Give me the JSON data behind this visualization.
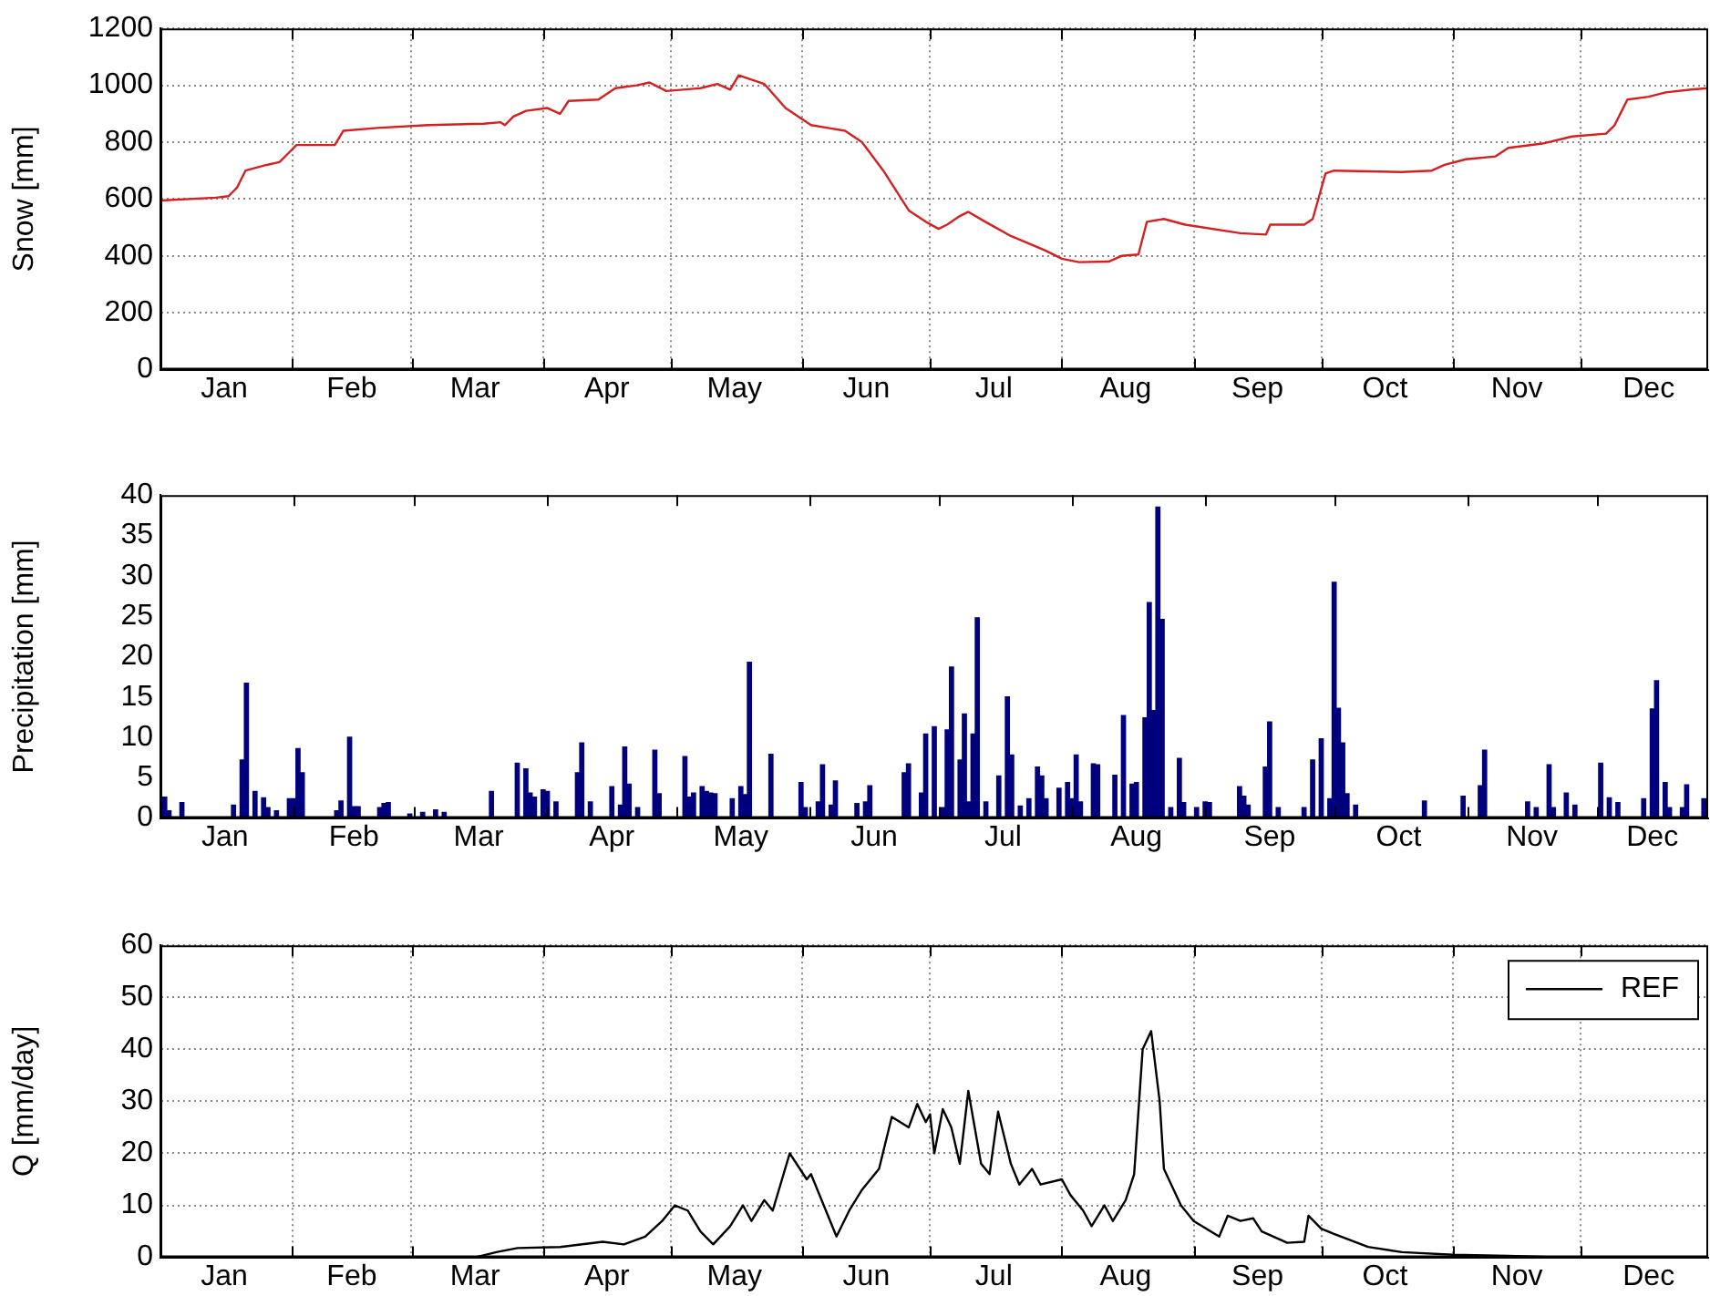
{
  "chart_data": [
    {
      "type": "line",
      "ylabel": "Snow [mm]",
      "xlim": [
        "--01-01",
        "--12-31"
      ],
      "ylim": [
        0,
        1200
      ],
      "yticks": [
        0,
        200,
        400,
        600,
        800,
        1000,
        1200
      ],
      "grid": true,
      "xticks": [
        {
          "value": "--01-16",
          "label": "Jan"
        },
        {
          "value": "--02-01",
          "label": null
        },
        {
          "value": "--02-15",
          "label": "Feb"
        },
        {
          "value": "--03-01",
          "label": null
        },
        {
          "value": "--03-16",
          "label": "Mar"
        },
        {
          "value": "--04-01",
          "label": null
        },
        {
          "value": "--04-16",
          "label": "Apr"
        },
        {
          "value": "--05-01",
          "label": null
        },
        {
          "value": "--05-16",
          "label": "May"
        },
        {
          "value": "--06-01",
          "label": null
        },
        {
          "value": "--06-16",
          "label": "Jun"
        },
        {
          "value": "--07-01",
          "label": null
        },
        {
          "value": "--07-16",
          "label": "Jul"
        },
        {
          "value": "--08-01",
          "label": null
        },
        {
          "value": "--08-16",
          "label": "Aug"
        },
        {
          "value": "--09-01",
          "label": null
        },
        {
          "value": "--09-16",
          "label": "Sep"
        },
        {
          "value": "--10-01",
          "label": null
        },
        {
          "value": "--10-16",
          "label": "Oct"
        },
        {
          "value": "--11-01",
          "label": null
        },
        {
          "value": "--11-16",
          "label": "Nov"
        },
        {
          "value": "--12-01",
          "label": null
        },
        {
          "value": "--12-17",
          "label": "Dec"
        }
      ],
      "x": [
        "--01-01",
        "--01-14",
        "--01-17",
        "--01-19",
        "--01-21",
        "--01-26",
        "--01-29",
        "--01-31",
        "--02-02",
        "--02-11",
        "--02-13",
        "--02-21",
        "--03-05",
        "--03-18",
        "--03-22",
        "--03-23",
        "--03-25",
        "--03-28",
        "--04-02",
        "--04-05",
        "--04-07",
        "--04-14",
        "--04-18",
        "--04-23",
        "--04-26",
        "--04-30",
        "--05-08",
        "--05-12",
        "--05-15",
        "--05-17",
        "--05-20",
        "--05-23",
        "--05-28",
        "--06-03",
        "--06-07",
        "--06-11",
        "--06-15",
        "--06-20",
        "--06-26",
        "--06-30",
        "--07-03",
        "--07-05",
        "--07-08",
        "--07-10",
        "--07-14",
        "--07-20",
        "--07-28",
        "--08-01",
        "--08-05",
        "--08-12",
        "--08-15",
        "--08-19",
        "--08-21",
        "--08-25",
        "--08-30",
        "--09-12",
        "--09-18",
        "--09-19",
        "--09-27",
        "--09-29",
        "--10-02",
        "--10-04",
        "--10-20",
        "--10-27",
        "--10-30",
        "--11-04",
        "--11-11",
        "--11-14",
        "--11-22",
        "--11-29",
        "--12-07",
        "--12-09",
        "--12-12",
        "--12-17",
        "--12-21",
        "--12-27",
        "--12-31"
      ],
      "series": [
        {
          "color": "#d42020",
          "values": [
            595,
            605,
            610,
            640,
            700,
            720,
            730,
            760,
            790,
            790,
            840,
            850,
            860,
            865,
            870,
            860,
            890,
            910,
            920,
            900,
            945,
            950,
            990,
            1000,
            1010,
            980,
            990,
            1005,
            985,
            1035,
            1020,
            1005,
            920,
            860,
            850,
            840,
            800,
            700,
            560,
            520,
            495,
            510,
            540,
            555,
            520,
            470,
            420,
            390,
            378,
            380,
            400,
            405,
            520,
            530,
            510,
            480,
            475,
            510,
            510,
            530,
            690,
            700,
            695,
            700,
            720,
            740,
            750,
            780,
            795,
            820,
            830,
            860,
            950,
            960,
            975,
            985,
            990
          ]
        }
      ]
    },
    {
      "type": "bar",
      "ylabel": "Precipitation [mm]",
      "xlim": [
        "--01-01",
        "--12-27"
      ],
      "ylim": [
        0,
        40
      ],
      "yticks": [
        0,
        5,
        10,
        15,
        20,
        25,
        30,
        35,
        40
      ],
      "xticks": [
        {
          "value": "--01-16",
          "label": "Jan"
        },
        {
          "value": "--02-01",
          "label": null
        },
        {
          "value": "--02-15",
          "label": "Feb"
        },
        {
          "value": "--03-01",
          "label": null
        },
        {
          "value": "--03-16",
          "label": "Mar"
        },
        {
          "value": "--04-01",
          "label": null
        },
        {
          "value": "--04-16",
          "label": "Apr"
        },
        {
          "value": "--05-01",
          "label": null
        },
        {
          "value": "--05-16",
          "label": "May"
        },
        {
          "value": "--06-01",
          "label": null
        },
        {
          "value": "--06-16",
          "label": "Jun"
        },
        {
          "value": "--07-01",
          "label": null
        },
        {
          "value": "--07-16",
          "label": "Jul"
        },
        {
          "value": "--08-01",
          "label": null
        },
        {
          "value": "--08-16",
          "label": "Aug"
        },
        {
          "value": "--09-01",
          "label": null
        },
        {
          "value": "--09-16",
          "label": "Sep"
        },
        {
          "value": "--10-01",
          "label": null
        },
        {
          "value": "--10-16",
          "label": "Oct"
        },
        {
          "value": "--11-01",
          "label": null
        },
        {
          "value": "--11-16",
          "label": "Nov"
        },
        {
          "value": "--12-01",
          "label": null
        },
        {
          "value": "--12-14",
          "label": "Dec"
        }
      ],
      "x": [
        "--01-02",
        "--01-03",
        "--01-06",
        "--01-18",
        "--01-20",
        "--01-21",
        "--01-23",
        "--01-25",
        "--01-26",
        "--01-28",
        "--01-31",
        "--02-01",
        "--02-02",
        "--02-03",
        "--02-11",
        "--02-12",
        "--02-14",
        "--02-15",
        "--02-16",
        "--02-21",
        "--02-22",
        "--02-23",
        "--02-28",
        "--03-03",
        "--03-06",
        "--03-08",
        "--03-19",
        "--03-25",
        "--03-27",
        "--03-28",
        "--03-29",
        "--03-31",
        "--04-01",
        "--04-03",
        "--04-08",
        "--04-09",
        "--04-11",
        "--04-16",
        "--04-18",
        "--04-19",
        "--04-20",
        "--04-22",
        "--04-26",
        "--04-27",
        "--05-03",
        "--05-04",
        "--05-05",
        "--05-07",
        "--05-08",
        "--05-09",
        "--05-10",
        "--05-14",
        "--05-16",
        "--05-17",
        "--05-18",
        "--05-23",
        "--05-30",
        "--05-31",
        "--06-03",
        "--06-04",
        "--06-06",
        "--06-07",
        "--06-12",
        "--06-14",
        "--06-15",
        "--06-23",
        "--06-24",
        "--06-27",
        "--06-28",
        "--06-30",
        "--07-02",
        "--07-03",
        "--07-04",
        "--07-06",
        "--07-07",
        "--07-08",
        "--07-09",
        "--07-10",
        "--07-12",
        "--07-15",
        "--07-17",
        "--07-18",
        "--07-20",
        "--07-22",
        "--07-24",
        "--07-25",
        "--07-26",
        "--07-29",
        "--07-31",
        "--08-01",
        "--08-02",
        "--08-03",
        "--08-06",
        "--08-07",
        "--08-11",
        "--08-13",
        "--08-15",
        "--08-16",
        "--08-18",
        "--08-19",
        "--08-20",
        "--08-21",
        "--08-22",
        "--08-24",
        "--08-26",
        "--08-27",
        "--08-30",
        "--09-01",
        "--09-02",
        "--09-09",
        "--09-10",
        "--09-11",
        "--09-15",
        "--09-16",
        "--09-18",
        "--09-24",
        "--09-26",
        "--09-28",
        "--09-30",
        "--10-01",
        "--10-02",
        "--10-03",
        "--10-04",
        "--10-06",
        "--10-22",
        "--10-31",
        "--11-04",
        "--11-05",
        "--11-15",
        "--11-17",
        "--11-20",
        "--11-21",
        "--11-24",
        "--11-26",
        "--12-02",
        "--12-04",
        "--12-06",
        "--12-12",
        "--12-14",
        "--12-15",
        "--12-17",
        "--12-18",
        "--12-21",
        "--12-22",
        "--12-26"
      ],
      "series": [
        {
          "color": "#00007f",
          "values": [
            2.6,
            0.9,
            1.9,
            1.6,
            7.2,
            16.7,
            3.3,
            2.5,
            1.3,
            0.9,
            2.4,
            2.4,
            8.6,
            5.6,
            0.9,
            2.1,
            10,
            1.4,
            1.4,
            1.3,
            1.8,
            1.9,
            0.5,
            0.7,
            1.0,
            0.7,
            3.3,
            6.8,
            6.1,
            3.1,
            2.6,
            3.5,
            3.3,
            2,
            5.6,
            9.3,
            2,
            3.9,
            1.6,
            8.8,
            4.2,
            1.3,
            8.4,
            3,
            7.6,
            2.6,
            3.1,
            3.9,
            3.3,
            3.1,
            3,
            2.4,
            3.9,
            2.9,
            19.3,
            7.9,
            4.4,
            1.3,
            2,
            6.6,
            1.6,
            4.6,
            1.8,
            2,
            4,
            5.6,
            6.7,
            3.1,
            10.4,
            11.3,
            1.3,
            10.9,
            18.7,
            7.2,
            12.9,
            2,
            10.4,
            24.8,
            2,
            5.2,
            15,
            7.8,
            1.5,
            2.4,
            6.3,
            5.2,
            2.4,
            3.7,
            4.4,
            2.4,
            7.8,
            2,
            6.7,
            6.6,
            5.3,
            12.7,
            4.2,
            4.4,
            12.4,
            26.7,
            13.3,
            38.5,
            24.6,
            1.3,
            7.4,
            1.9,
            1.3,
            2,
            1.9,
            3.9,
            2.7,
            1.6,
            6.3,
            11.9,
            1.3,
            1.3,
            7.2,
            9.8,
            2.4,
            29.2,
            13.6,
            9.3,
            3,
            1.6,
            2.1,
            2.7,
            4,
            8.4,
            2,
            1.3,
            6.6,
            1.3,
            3.1,
            1.6,
            6.8,
            2.5,
            1.9,
            2.4,
            13.5,
            17,
            4.4,
            1.3,
            1.3,
            4.1,
            2.4
          ]
        }
      ]
    },
    {
      "type": "line",
      "ylabel": "Q [mm/day]",
      "xlim": [
        "--01-01",
        "--12-31"
      ],
      "ylim": [
        0,
        60
      ],
      "yticks": [
        0,
        10,
        20,
        30,
        40,
        50,
        60
      ],
      "grid": true,
      "legend": "top right",
      "xticks": [
        {
          "value": "--01-16",
          "label": "Jan"
        },
        {
          "value": "--02-01",
          "label": null
        },
        {
          "value": "--02-15",
          "label": "Feb"
        },
        {
          "value": "--03-01",
          "label": null
        },
        {
          "value": "--03-16",
          "label": "Mar"
        },
        {
          "value": "--04-01",
          "label": null
        },
        {
          "value": "--04-16",
          "label": "Apr"
        },
        {
          "value": "--05-01",
          "label": null
        },
        {
          "value": "--05-16",
          "label": "May"
        },
        {
          "value": "--06-01",
          "label": null
        },
        {
          "value": "--06-16",
          "label": "Jun"
        },
        {
          "value": "--07-01",
          "label": null
        },
        {
          "value": "--07-16",
          "label": "Jul"
        },
        {
          "value": "--08-01",
          "label": null
        },
        {
          "value": "--08-16",
          "label": "Aug"
        },
        {
          "value": "--09-01",
          "label": null
        },
        {
          "value": "--09-16",
          "label": "Sep"
        },
        {
          "value": "--10-01",
          "label": null
        },
        {
          "value": "--10-16",
          "label": "Oct"
        },
        {
          "value": "--11-01",
          "label": null
        },
        {
          "value": "--11-16",
          "label": "Nov"
        },
        {
          "value": "--12-01",
          "label": null
        },
        {
          "value": "--12-17",
          "label": "Dec"
        }
      ],
      "x": [
        "--01-01",
        "--03-16",
        "--03-21",
        "--03-26",
        "--04-05",
        "--04-15",
        "--04-20",
        "--04-25",
        "--04-29",
        "--05-02",
        "--05-05",
        "--05-08",
        "--05-11",
        "--05-15",
        "--05-18",
        "--05-20",
        "--05-23",
        "--05-25",
        "--05-29",
        "--06-02",
        "--06-03",
        "--06-06",
        "--06-09",
        "--06-12",
        "--06-15",
        "--06-19",
        "--06-22",
        "--06-26",
        "--06-28",
        "--06-30",
        "--07-01",
        "--07-02",
        "--07-04",
        "--07-06",
        "--07-08",
        "--07-10",
        "--07-13",
        "--07-15",
        "--07-17",
        "--07-20",
        "--07-22",
        "--07-25",
        "--07-27",
        "--08-01",
        "--08-03",
        "--08-06",
        "--08-08",
        "--08-11",
        "--08-13",
        "--08-16",
        "--08-18",
        "--08-20",
        "--08-22",
        "--08-24",
        "--08-25",
        "--08-29",
        "--09-01",
        "--09-07",
        "--09-09",
        "--09-12",
        "--09-15",
        "--09-17",
        "--09-23",
        "--09-27",
        "--09-28",
        "--10-01",
        "--10-04",
        "--10-12",
        "--10-20",
        "--11-01",
        "--11-14",
        "--11-27",
        "--12-31"
      ],
      "series": [
        {
          "name": "REF",
          "color": "#000000",
          "values": [
            0,
            0,
            1,
            1.8,
            2,
            3,
            2.5,
            4,
            7,
            10,
            9,
            5,
            2.5,
            6,
            10,
            7,
            11,
            9,
            20,
            15,
            16,
            10,
            4,
            9,
            13,
            17,
            27,
            25,
            29.5,
            26,
            27.5,
            20,
            28.5,
            25,
            18,
            32,
            18,
            16,
            28,
            18,
            14,
            17,
            14,
            15,
            12,
            9,
            6,
            10,
            7,
            11,
            16,
            40,
            43.5,
            30,
            17,
            10,
            7,
            4,
            8,
            7,
            7.5,
            5,
            2.8,
            3,
            8,
            5.5,
            4.5,
            2,
            1,
            0.5,
            0.3,
            0,
            0
          ]
        }
      ]
    }
  ]
}
